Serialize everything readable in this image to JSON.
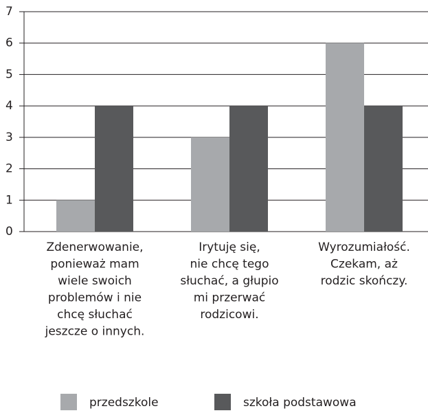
{
  "chart_data": {
    "type": "bar",
    "categories": [
      [
        "Zdenerwowanie,",
        "ponieważ mam",
        "wiele swoich",
        "problemów i nie",
        "chcę słuchać",
        "jeszcze o innych."
      ],
      [
        "Irytuję się,",
        "nie chcę tego",
        "słuchać, a głupio",
        "mi przerwać",
        "rodzicowi."
      ],
      [
        "Wyrozumiałość.",
        "Czekam, aż",
        "rodzic skończy."
      ]
    ],
    "series": [
      {
        "name": "przedszkole",
        "color": "#a7a9ac",
        "values": [
          1,
          3,
          6
        ]
      },
      {
        "name": "szkoła podstawowa",
        "color": "#58595b",
        "values": [
          4,
          4,
          4
        ]
      }
    ],
    "ylim": [
      0,
      7
    ],
    "yticks": [
      0,
      1,
      2,
      3,
      4,
      5,
      6,
      7
    ],
    "grid": true,
    "legend": "bottom"
  }
}
